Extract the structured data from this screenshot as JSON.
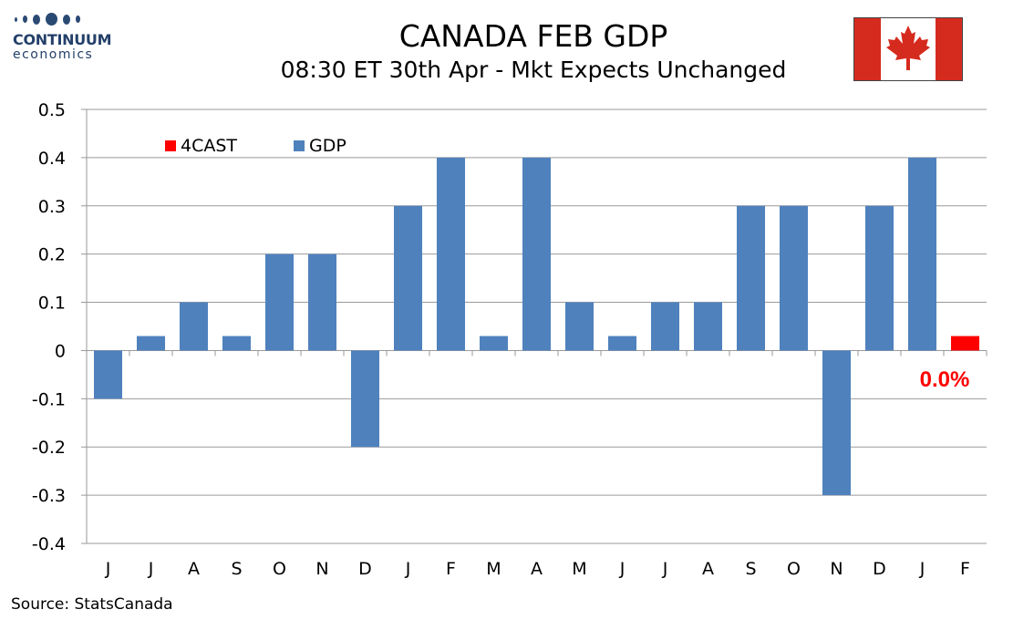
{
  "logo": {
    "name": "CONTINUUM",
    "sub": "economics"
  },
  "title": "CANADA FEB GDP",
  "subtitle": "08:30 ET 30th Apr - Mkt Expects Unchanged",
  "source": "Source: StatsCanada",
  "colors": {
    "gdp": "#4f81bd",
    "forecast": "#ff0000",
    "flag_red": "#d52b1e"
  },
  "chart_data": {
    "type": "bar",
    "categories": [
      "J",
      "J",
      "A",
      "S",
      "O",
      "N",
      "D",
      "J",
      "F",
      "M",
      "A",
      "M",
      "J",
      "J",
      "A",
      "S",
      "O",
      "N",
      "D",
      "J",
      "F"
    ],
    "series": [
      {
        "name": "GDP",
        "values": [
          -0.1,
          0.03,
          0.1,
          0.03,
          0.2,
          0.2,
          -0.2,
          0.3,
          0.4,
          0.03,
          0.4,
          0.1,
          0.03,
          0.1,
          0.1,
          0.3,
          0.3,
          -0.3,
          0.3,
          0.4,
          null
        ]
      },
      {
        "name": "4CAST",
        "values": [
          null,
          null,
          null,
          null,
          null,
          null,
          null,
          null,
          null,
          null,
          null,
          null,
          null,
          null,
          null,
          null,
          null,
          null,
          null,
          null,
          0.03
        ]
      }
    ],
    "yticks": [
      "0.5",
      "0.4",
      "0.3",
      "0.2",
      "0.1",
      "0",
      "-0.1",
      "-0.2",
      "-0.3",
      "-0.4"
    ],
    "ylim": [
      -0.4,
      0.5
    ],
    "grid": true,
    "legend": "top-left",
    "annotation": "0.0%"
  }
}
